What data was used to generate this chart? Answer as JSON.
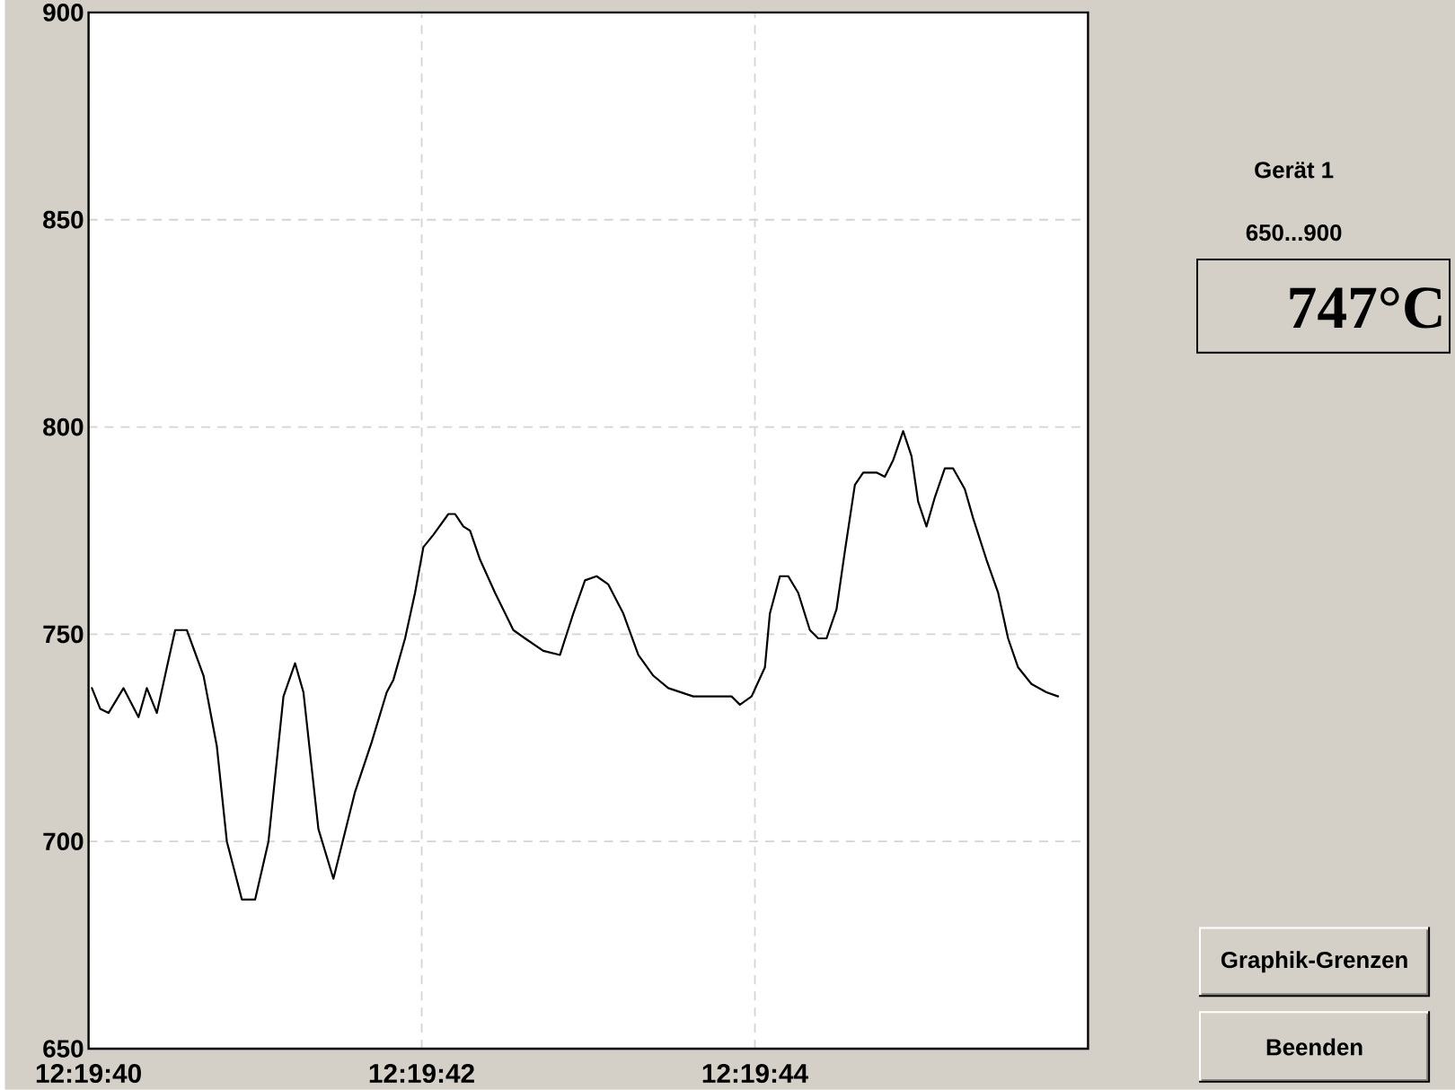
{
  "chart_data": {
    "type": "line",
    "color": "#000000",
    "marker": "none",
    "grid": true,
    "x": [
      12.3277834,
      12.3277972,
      12.3278111,
      12.3278361,
      12.3278611,
      12.327875,
      12.3278917,
      12.3279084,
      12.3279222,
      12.3279417,
      12.3279695,
      12.3279917,
      12.3280084,
      12.3280334,
      12.3280556,
      12.3280778,
      12.3281028,
      12.3281222,
      12.3281361,
      12.3281611,
      12.3281861,
      12.3282222,
      12.32825,
      12.328275,
      12.3282861,
      12.3283056,
      12.3283222,
      12.3283361,
      12.3283528,
      12.3283778,
      12.3283889,
      12.3284028,
      12.3284139,
      12.3284306,
      12.3284556,
      12.3284861,
      12.3285056,
      12.3285361,
      12.3285639,
      12.3285861,
      12.3286056,
      12.328625,
      12.3286445,
      12.3286695,
      12.3286945,
      12.3287195,
      12.3287445,
      12.3287861,
      12.32885,
      12.3288639,
      12.3288834,
      12.3289056,
      12.3289139,
      12.3289306,
      12.3289445,
      12.3289611,
      12.3289806,
      12.3289945,
      12.3290084,
      12.329025,
      12.3290389,
      12.3290556,
      12.3290695,
      12.3290917,
      12.3291056,
      12.3291195,
      12.3291361,
      12.32915,
      12.3291611,
      12.329175,
      12.3291889,
      12.3292056,
      12.3292195,
      12.3292389,
      12.3292528,
      12.329275,
      12.3292945,
      12.3293111,
      12.3293278,
      12.32935,
      12.329375,
      12.3293945
    ],
    "values": [
      737,
      732,
      731,
      737,
      730,
      737,
      731,
      742,
      751,
      751,
      740,
      723,
      700,
      686,
      686,
      700,
      735,
      743,
      736,
      703,
      691,
      712,
      724,
      736,
      739,
      749,
      760,
      771,
      774,
      779,
      779,
      776,
      775,
      768,
      760,
      751,
      749,
      746,
      745,
      755,
      763,
      764,
      762,
      755,
      745,
      740,
      737,
      735,
      735,
      733,
      735,
      742,
      755,
      764,
      764,
      760,
      751,
      749,
      749,
      756,
      770,
      786,
      789,
      789,
      788,
      792,
      799,
      793,
      782,
      776,
      783,
      790,
      790,
      785,
      778,
      768,
      760,
      749,
      742,
      738,
      736,
      735
    ],
    "xlim": [
      12.3277778,
      12.3294444
    ],
    "xticks": [
      {
        "value": 12.3277778,
        "label": "12:19:40"
      },
      {
        "value": 12.3283333,
        "label": "12:19:42"
      },
      {
        "value": 12.3288889,
        "label": "12:19:44"
      }
    ],
    "ylim": [
      650,
      900
    ],
    "yticks": [
      650,
      700,
      750,
      800,
      850,
      900
    ],
    "annotations": [
      "Gerät 1",
      "650...900",
      "747°C",
      "Graphik-Grenzen",
      "Beenden"
    ]
  }
}
